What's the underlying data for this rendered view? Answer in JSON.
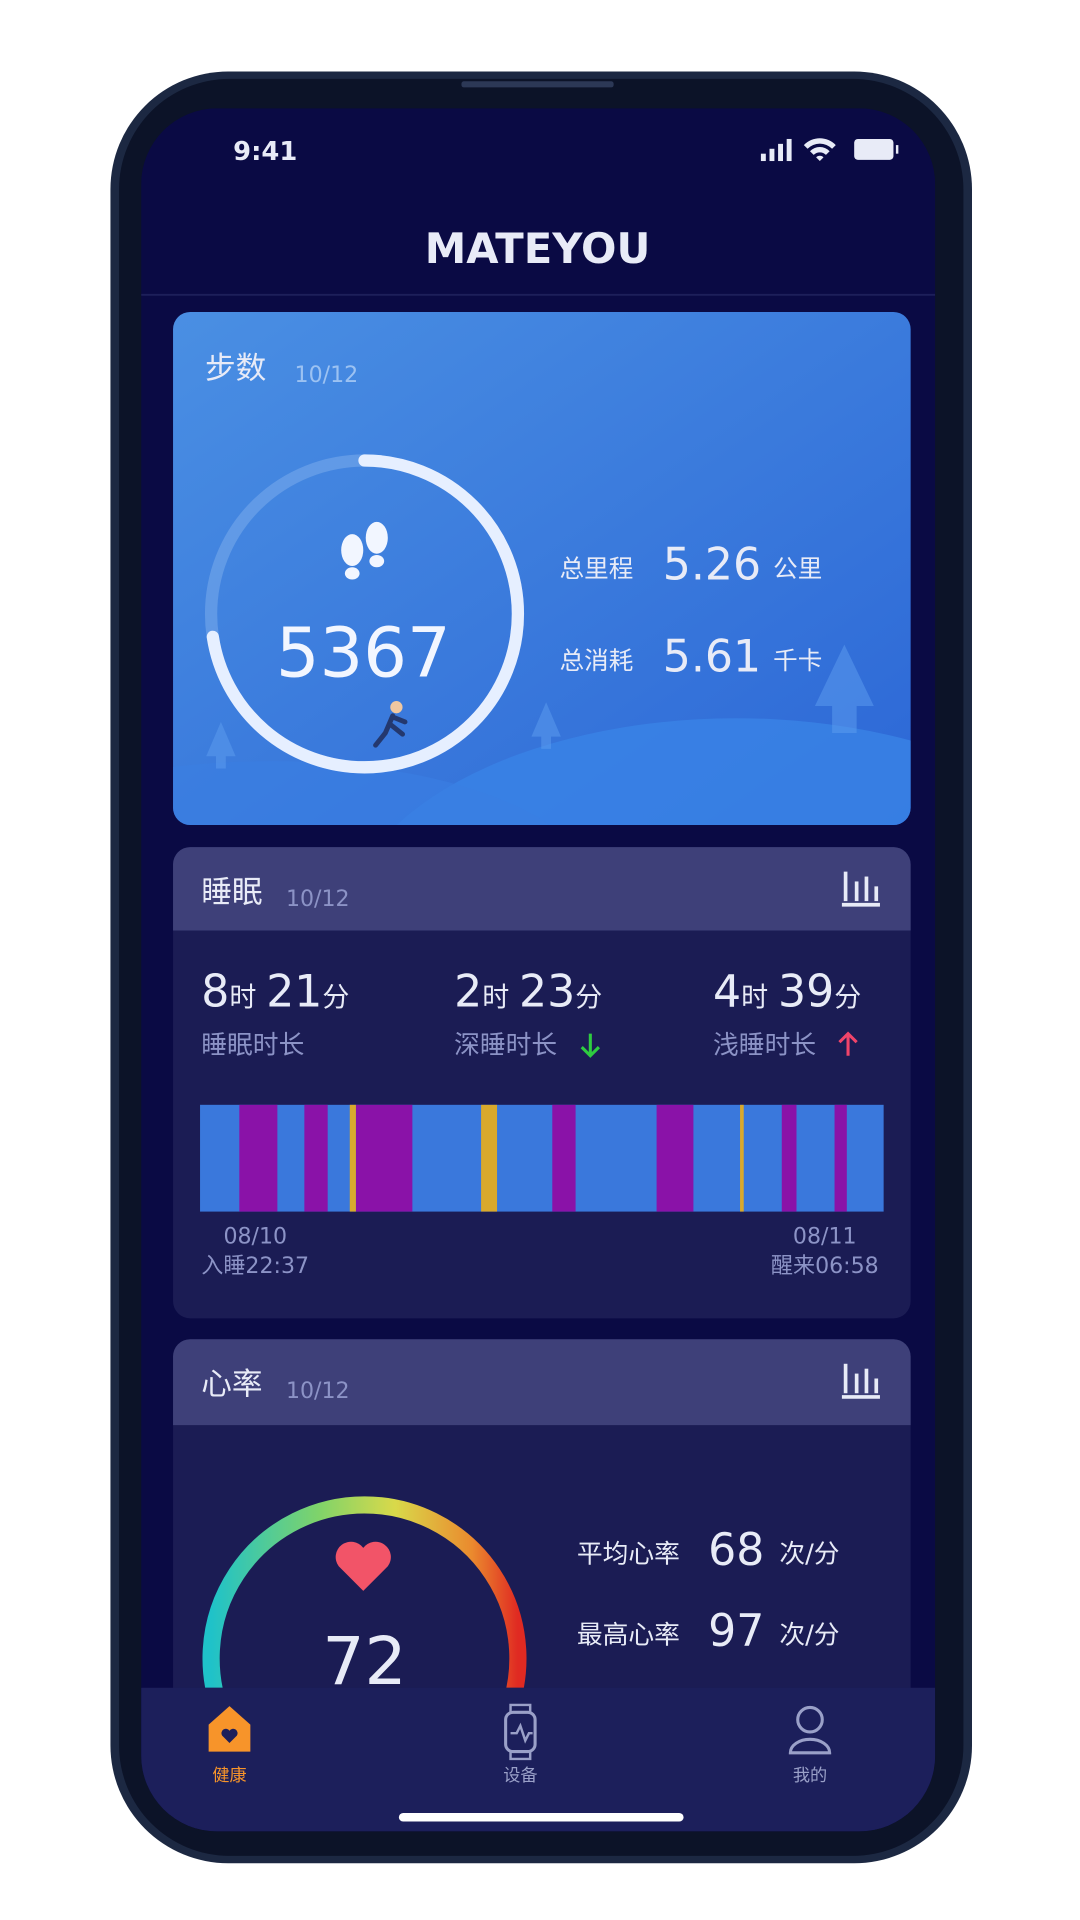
{
  "status_bar": {
    "time": "9:41"
  },
  "header": {
    "title": "MATEYOU"
  },
  "steps_card": {
    "title": "步数",
    "date": "10/12",
    "steps": "5367",
    "stats": [
      {
        "label": "总里程",
        "value": "5.26",
        "unit": "公里"
      },
      {
        "label": "总消耗",
        "value": "5.61",
        "unit": "千卡"
      }
    ]
  },
  "sleep_card": {
    "title": "睡眠",
    "date": "10/12",
    "items": [
      {
        "hours": "8",
        "hour_unit": "时",
        "minutes": "21",
        "minute_unit": "分",
        "label": "睡眠时长"
      },
      {
        "hours": "2",
        "hour_unit": "时",
        "minutes": "23",
        "minute_unit": "分",
        "label": "深睡时长"
      },
      {
        "hours": "4",
        "hour_unit": "时",
        "minutes": "39",
        "minute_unit": "分",
        "label": "浅睡时长"
      }
    ],
    "start_date": "08/10",
    "start_time": "入睡22:37",
    "end_date": "08/11",
    "end_time": "醒来06:58"
  },
  "heart_card": {
    "title": "心率",
    "date": "10/12",
    "rate": "72",
    "stats": [
      {
        "label": "平均心率",
        "value": "68",
        "unit": "次/分"
      },
      {
        "label": "最高心率",
        "value": "97",
        "unit": "次/分"
      }
    ]
  },
  "tab_bar": {
    "tabs": [
      "健康",
      "设备",
      "我的"
    ]
  }
}
